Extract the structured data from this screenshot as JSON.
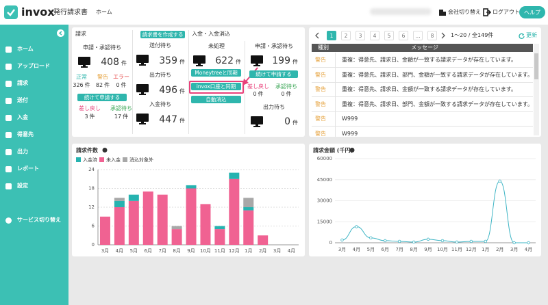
{
  "header": {
    "logo": "invox",
    "product": "発行請求書",
    "nav": "ホーム",
    "switch_company": "会社切り替え",
    "logout": "ログアウト",
    "help": "ヘルプ"
  },
  "sidebar": {
    "items": [
      "ホーム",
      "アップロード",
      "請求",
      "送付",
      "入金",
      "得意先",
      "出力",
      "レポート",
      "設定"
    ],
    "service_switch": "サービス切り替え"
  },
  "dashboard": {
    "billing": {
      "title": "請求",
      "pending_label": "申請・承認待ち",
      "pending": {
        "value": 408,
        "unit": "件"
      },
      "status_labels": [
        "正常",
        "警告",
        "エラー"
      ],
      "status_counts": [
        {
          "value": 326,
          "unit": "件"
        },
        {
          "value": 82,
          "unit": "件"
        },
        {
          "value": 0,
          "unit": "件"
        }
      ],
      "button": "続けて申請する",
      "sub_labels": [
        "差し戻し",
        "承認待ち"
      ],
      "sub_counts": [
        {
          "value": 3,
          "unit": "件"
        },
        {
          "value": 17,
          "unit": "件"
        }
      ]
    },
    "create_button": "請求書を作成する",
    "sending": [
      {
        "label": "送付待ち",
        "count": {
          "value": 359,
          "unit": "件"
        }
      },
      {
        "label": "出力待ち",
        "count": {
          "value": 496,
          "unit": "件"
        }
      },
      {
        "label": "入金待ち",
        "count": {
          "value": 447,
          "unit": "件"
        }
      }
    ],
    "payment": {
      "title": "入金・入金消込",
      "unprocessed_label": "未処理",
      "unprocessed": {
        "value": 622,
        "unit": "件"
      },
      "buttons": [
        "Moneytreeと同期",
        "invox口座と同期",
        "自動消込"
      ]
    },
    "approval": {
      "pending_label": "申請・承認待ち",
      "pending": {
        "value": 199,
        "unit": "件"
      },
      "button": "続けて申請する",
      "sub_labels": [
        "差し戻し",
        "承認待ち"
      ],
      "sub_counts": [
        {
          "value": 0,
          "unit": "件"
        },
        {
          "value": 0,
          "unit": "件"
        }
      ],
      "output_label": "出力待ち",
      "output": {
        "value": 0,
        "unit": "件"
      }
    }
  },
  "messages": {
    "pages": [
      "1",
      "2",
      "3",
      "4",
      "5",
      "6",
      "...",
      "8"
    ],
    "range": "1〜20 / 全149件",
    "refresh": "更新",
    "columns": [
      "種別",
      "メッセージ"
    ],
    "rows": [
      [
        "警告",
        "重複：得意先、請求日、金額が一致する請求データが存在しています。"
      ],
      [
        "警告",
        "重複：得意先、請求日、部門、金額が一致する請求データが存在しています。"
      ],
      [
        "警告",
        "重複：得意先、請求日、金額が一致する請求データが存在しています。"
      ],
      [
        "警告",
        "重複：得意先、請求日、部門、金額が一致する請求データが存在しています。"
      ],
      [
        "警告",
        "W999"
      ],
      [
        "警告",
        "W999"
      ]
    ]
  },
  "chart_data": [
    {
      "type": "bar",
      "stacked": true,
      "title": "請求件数",
      "categories": [
        "3月",
        "4月",
        "5月",
        "6月",
        "7月",
        "8月",
        "9月",
        "10月",
        "11月",
        "12月",
        "1月",
        "2月",
        "3月",
        "4月"
      ],
      "series": [
        {
          "name": "入金済",
          "color": "#26b3b0",
          "values": [
            0,
            2,
            2,
            0,
            0,
            0,
            1,
            0,
            1,
            2,
            1,
            0,
            0,
            0
          ]
        },
        {
          "name": "未入金",
          "color": "#f06292",
          "values": [
            9,
            12,
            14,
            17,
            16,
            5,
            18,
            13,
            5,
            21,
            11,
            3,
            0,
            0
          ]
        },
        {
          "name": "消込対象外",
          "color": "#a8a8a8",
          "values": [
            0,
            1,
            0,
            0,
            0,
            1,
            0,
            0,
            0,
            0,
            3,
            0,
            0,
            0
          ]
        }
      ],
      "ylim": [
        0,
        24
      ],
      "yticks": [
        0,
        6,
        12,
        18,
        24
      ],
      "grid": true
    },
    {
      "type": "line",
      "title": "請求金額 (千円)",
      "categories": [
        "3月",
        "4月",
        "5月",
        "6月",
        "7月",
        "8月",
        "9月",
        "10月",
        "11月",
        "12月",
        "1月",
        "2月",
        "3月",
        "4月"
      ],
      "values": [
        2000,
        11500,
        3500,
        1500,
        1000,
        500,
        2500,
        1500,
        500,
        1000,
        1000,
        44000,
        0,
        0
      ],
      "color": "#3cb4c4",
      "ylim": [
        0,
        60000
      ],
      "yticks": [
        0,
        15000,
        30000,
        45000,
        60000
      ],
      "grid": true
    }
  ]
}
